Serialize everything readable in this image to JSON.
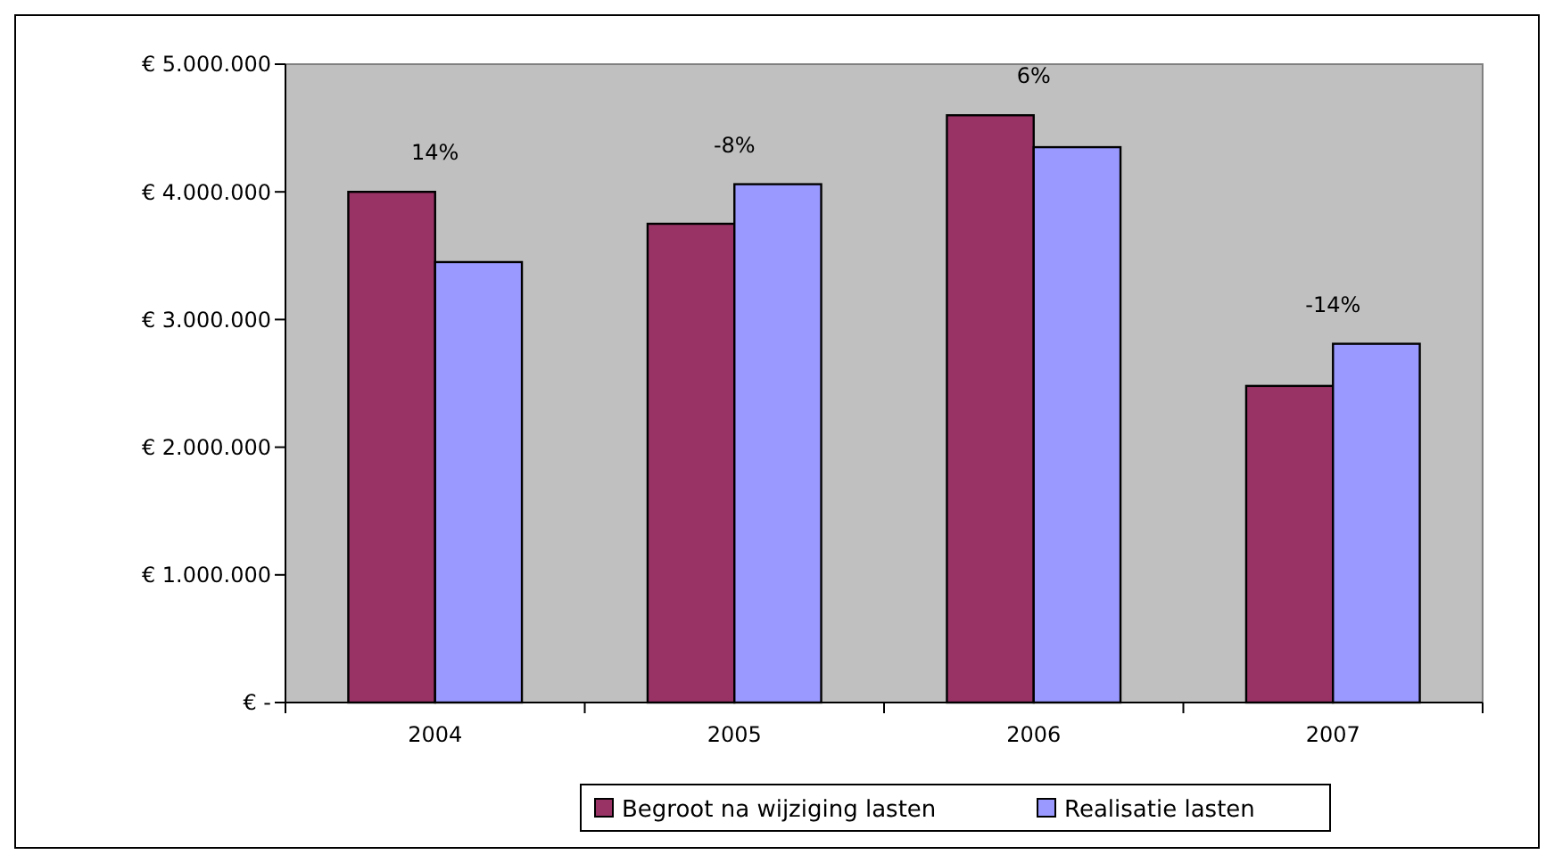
{
  "chart_data": {
    "type": "bar",
    "categories": [
      "2004",
      "2005",
      "2006",
      "2007"
    ],
    "series": [
      {
        "name": "Begroot na wijziging lasten",
        "color": "#993366",
        "values": [
          4000000,
          3750000,
          4600000,
          2480000
        ]
      },
      {
        "name": "Realisatie lasten",
        "color": "#9999ff",
        "values": [
          3450000,
          4060000,
          4350000,
          2810000
        ]
      }
    ],
    "ylim": [
      0,
      5000000
    ],
    "yticks": [
      {
        "value": 0,
        "label": "€ -"
      },
      {
        "value": 1000000,
        "label": "€ 1.000.000"
      },
      {
        "value": 2000000,
        "label": "€ 2.000.000"
      },
      {
        "value": 3000000,
        "label": "€ 3.000.000"
      },
      {
        "value": 4000000,
        "label": "€ 4.000.000"
      },
      {
        "value": 5000000,
        "label": "€ 5.000.000"
      }
    ],
    "annotations": [
      "14%",
      "-8%",
      "6%",
      "-14%"
    ],
    "grid": false,
    "legend": "bottom"
  }
}
